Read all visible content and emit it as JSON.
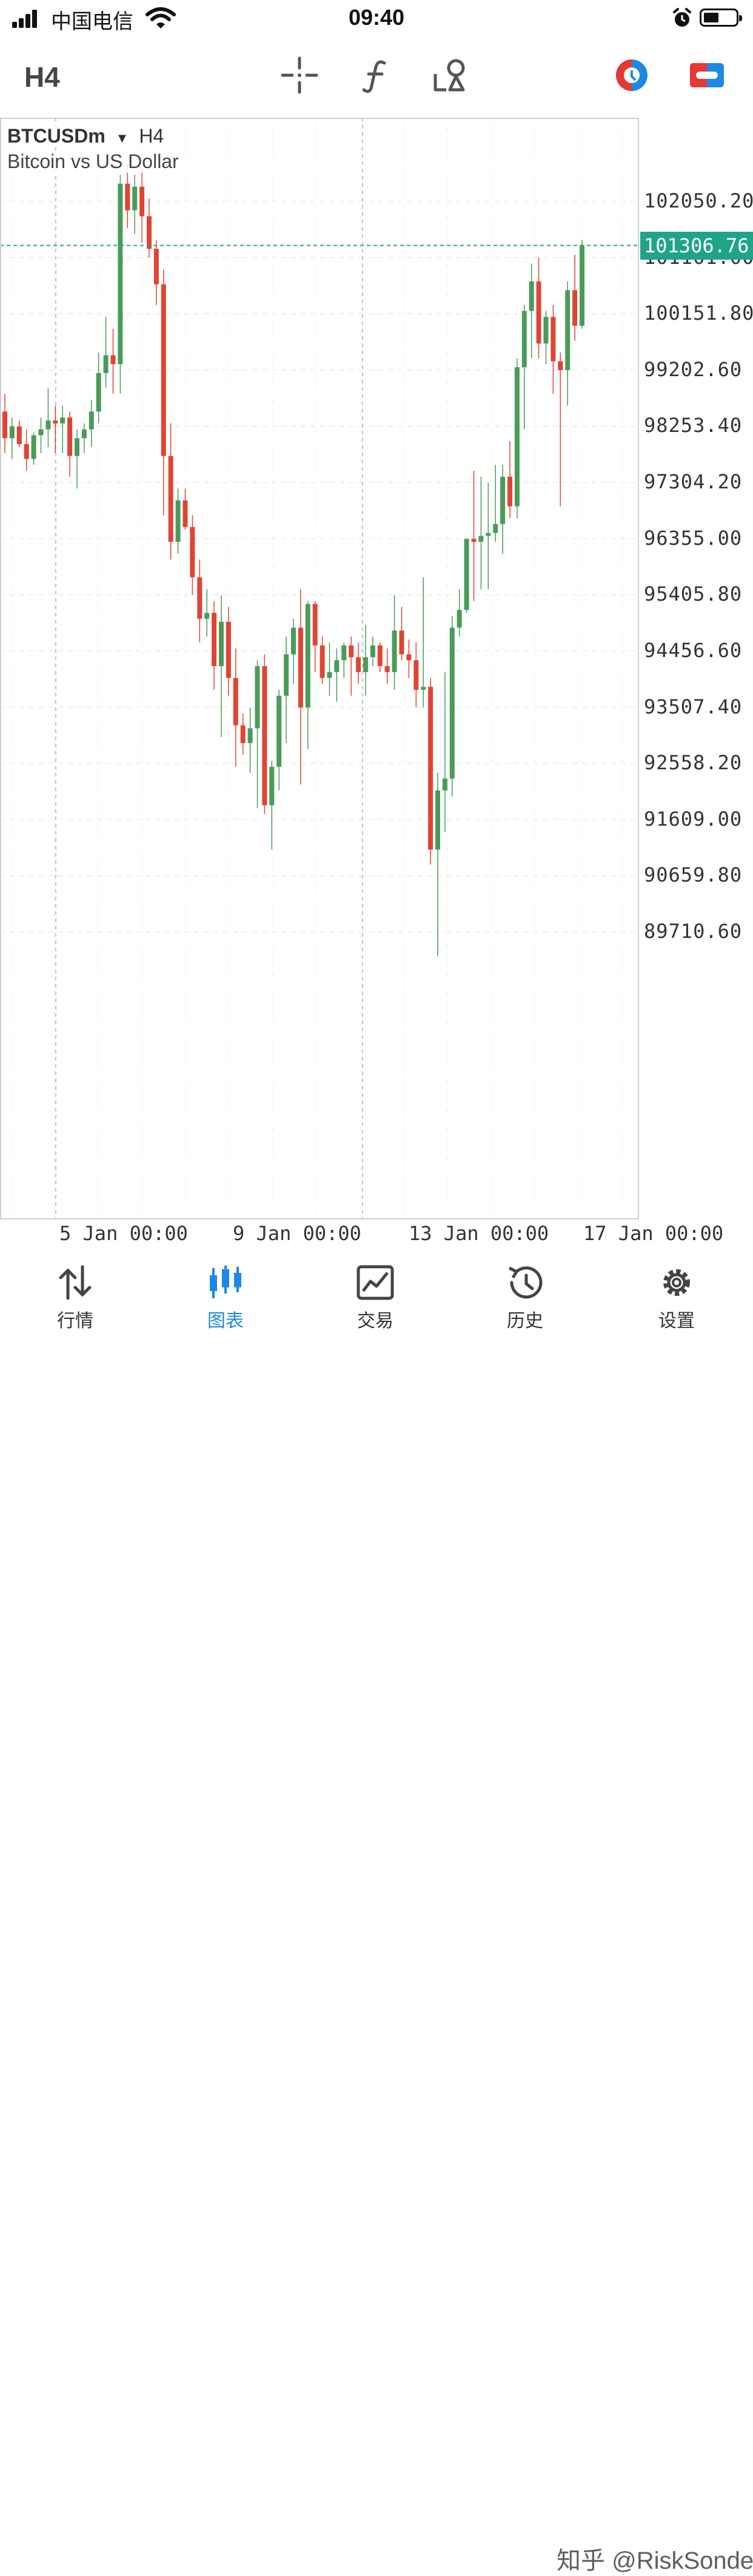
{
  "status_bar": {
    "carrier": "中国电信",
    "time": "09:40",
    "icons": [
      "signal-icon",
      "wifi-icon",
      "alarm-icon",
      "battery-icon"
    ]
  },
  "toolbar": {
    "timeframe": "H4",
    "icons": [
      "crosshair-icon",
      "indicators-icon",
      "objects-icon",
      "one-click-trading-icon",
      "account-icon"
    ],
    "accent_colors": {
      "trade_red": "#e53935",
      "trade_blue": "#1e88e5"
    }
  },
  "chart": {
    "symbol": "BTCUSDm",
    "timeframe": "H4",
    "description": "Bitcoin vs US Dollar",
    "current_price": "101306.76",
    "colors": {
      "bull": "#4a9b5a",
      "bear": "#e04434",
      "grid": "#d6d6d6",
      "current_line": "#1fa488"
    }
  },
  "chart_data": {
    "type": "candlestick",
    "symbol": "BTCUSDm",
    "timeframe": "H4",
    "y_ticks": [
      "102050.20",
      "101101.00",
      "100151.80",
      "99202.60",
      "98253.40",
      "97304.20",
      "96355.00",
      "95405.80",
      "94456.60",
      "93507.40",
      "92558.20",
      "91609.00",
      "90659.80",
      "89710.60"
    ],
    "x_ticks": [
      "5 Jan 00:00",
      "9 Jan 00:00",
      "13 Jan 00:00",
      "17 Jan 00:00"
    ],
    "ylim": [
      88600,
      103000
    ],
    "current_price": 101306.76,
    "grid": true,
    "candles": [
      [
        98500,
        98800,
        97800,
        98050
      ],
      [
        98050,
        98400,
        97700,
        98250
      ],
      [
        98250,
        98350,
        97900,
        97950
      ],
      [
        97950,
        98200,
        97500,
        97700
      ],
      [
        97700,
        98150,
        97600,
        98100
      ],
      [
        98100,
        98400,
        97800,
        98200
      ],
      [
        98200,
        98900,
        97900,
        98350
      ],
      [
        98350,
        98600,
        97800,
        98300
      ],
      [
        98300,
        98600,
        97800,
        98400
      ],
      [
        98400,
        98500,
        97400,
        97750
      ],
      [
        97750,
        98200,
        97200,
        98050
      ],
      [
        98050,
        98300,
        97800,
        98200
      ],
      [
        98200,
        98700,
        97900,
        98500
      ],
      [
        98500,
        99500,
        98300,
        99150
      ],
      [
        99150,
        100100,
        98900,
        99450
      ],
      [
        99450,
        99900,
        98800,
        99300
      ],
      [
        99300,
        102500,
        98800,
        102350
      ],
      [
        102350,
        102700,
        101600,
        101900
      ],
      [
        101900,
        102500,
        101500,
        102300
      ],
      [
        102300,
        102650,
        101350,
        101800
      ],
      [
        101800,
        102100,
        101100,
        101250
      ],
      [
        101250,
        101400,
        100300,
        100650
      ],
      [
        100650,
        100900,
        96750,
        97750
      ],
      [
        97750,
        98300,
        96000,
        96300
      ],
      [
        96300,
        97200,
        96100,
        97000
      ],
      [
        97000,
        97200,
        96500,
        96550
      ],
      [
        96550,
        96750,
        95400,
        95700
      ],
      [
        95700,
        96000,
        94600,
        95000
      ],
      [
        95000,
        95500,
        94700,
        95100
      ],
      [
        95100,
        95300,
        93800,
        94200
      ],
      [
        94200,
        95400,
        93000,
        94950
      ],
      [
        94950,
        95200,
        93700,
        94000
      ],
      [
        94000,
        94500,
        92500,
        93200
      ],
      [
        93200,
        93400,
        92700,
        92900
      ],
      [
        92900,
        93500,
        92400,
        93150
      ],
      [
        93150,
        94300,
        91800,
        94200
      ],
      [
        94200,
        94400,
        91700,
        91850
      ],
      [
        91850,
        92600,
        91100,
        92500
      ],
      [
        92500,
        93800,
        92100,
        93700
      ],
      [
        93700,
        94700,
        92900,
        94400
      ],
      [
        94400,
        95000,
        93900,
        94850
      ],
      [
        94850,
        95500,
        92200,
        93500
      ],
      [
        93500,
        95300,
        92800,
        95250
      ],
      [
        95250,
        95300,
        94100,
        94550
      ],
      [
        94550,
        94700,
        93900,
        94000
      ],
      [
        94000,
        94600,
        93700,
        94100
      ],
      [
        94100,
        94500,
        93600,
        94300
      ],
      [
        94300,
        94600,
        94000,
        94550
      ],
      [
        94550,
        94700,
        93700,
        94350
      ],
      [
        94350,
        94600,
        93900,
        94100
      ],
      [
        94100,
        94900,
        93700,
        94350
      ],
      [
        94350,
        94700,
        94200,
        94550
      ],
      [
        94550,
        94600,
        94100,
        94200
      ],
      [
        94200,
        94500,
        93900,
        94100
      ],
      [
        94100,
        95400,
        93800,
        94800
      ],
      [
        94800,
        95200,
        94300,
        94400
      ],
      [
        94400,
        94650,
        94000,
        94300
      ],
      [
        94300,
        94600,
        93500,
        93800
      ],
      [
        93800,
        95700,
        93500,
        93850
      ],
      [
        93850,
        94000,
        90850,
        91100
      ],
      [
        91100,
        92400,
        89300,
        92100
      ],
      [
        92100,
        94100,
        91400,
        92300
      ],
      [
        92300,
        95050,
        92000,
        94850
      ],
      [
        94850,
        95500,
        94700,
        95150
      ],
      [
        95150,
        96300,
        95100,
        96350
      ],
      [
        96350,
        97500,
        95300,
        96300
      ],
      [
        96300,
        97400,
        95500,
        96400
      ],
      [
        96400,
        97300,
        95500,
        96450
      ],
      [
        96450,
        97600,
        96300,
        96600
      ],
      [
        96600,
        97600,
        96100,
        97400
      ],
      [
        97400,
        98000,
        96700,
        96900
      ],
      [
        96900,
        99400,
        96700,
        99250
      ],
      [
        99250,
        100300,
        98200,
        100200
      ],
      [
        100200,
        101000,
        99400,
        100700
      ],
      [
        100700,
        101100,
        99400,
        99650
      ],
      [
        99650,
        100200,
        99300,
        100100
      ],
      [
        100100,
        100300,
        98800,
        99350
      ],
      [
        99350,
        99500,
        96900,
        99200
      ],
      [
        99200,
        100700,
        98600,
        100550
      ],
      [
        100550,
        101150,
        99700,
        99950
      ],
      [
        99950,
        101400,
        99900,
        101306.76
      ]
    ]
  },
  "bottom_nav": [
    {
      "label": "行情",
      "icon": "quotes-icon"
    },
    {
      "label": "图表",
      "icon": "chart-icon"
    },
    {
      "label": "交易",
      "icon": "trade-icon"
    },
    {
      "label": "历史",
      "icon": "history-icon"
    },
    {
      "label": "设置",
      "icon": "settings-icon"
    }
  ],
  "watermark": "知乎 @RiskSonder"
}
